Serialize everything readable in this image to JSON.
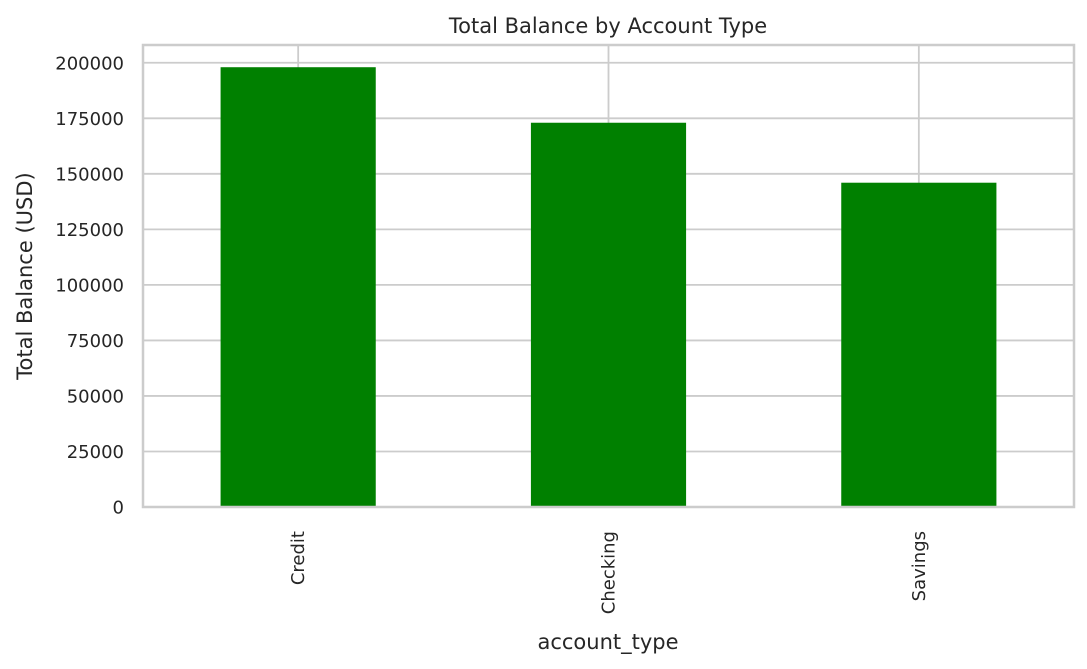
{
  "chart_data": {
    "type": "bar",
    "title": "Total Balance by Account Type",
    "xlabel": "account_type",
    "ylabel": "Total Balance (USD)",
    "categories": [
      "Credit",
      "Checking",
      "Savings"
    ],
    "values": [
      198000,
      173000,
      146000
    ],
    "ylim": [
      0,
      208000
    ],
    "yticks": [
      0,
      25000,
      50000,
      75000,
      100000,
      125000,
      150000,
      175000,
      200000
    ],
    "ytick_labels": [
      "0",
      "25000",
      "50000",
      "75000",
      "100000",
      "125000",
      "150000",
      "175000",
      "200000"
    ],
    "bar_color": "#008000",
    "grid": true
  }
}
